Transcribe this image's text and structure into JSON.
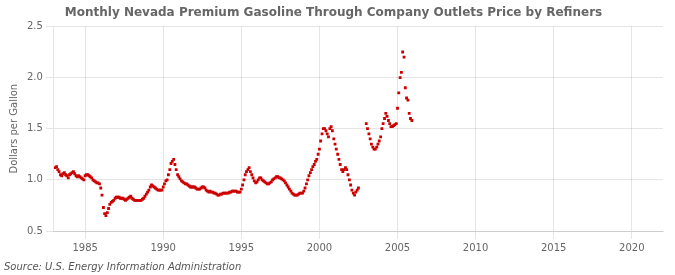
{
  "chart_data": {
    "type": "scatter",
    "title": "Monthly Nevada Premium Gasoline Through Company Outlets Price by Refiners",
    "ylabel": "Dollars per Gallon",
    "annotations": [
      "Source: U.S. Energy Information Administration"
    ],
    "color": "#cc0000",
    "marker": "square",
    "grid": true,
    "xlim": [
      1983.0,
      2022.0
    ],
    "ylim": [
      0.5,
      2.5
    ],
    "xticks": [
      1985,
      1990,
      1995,
      2000,
      2005,
      2010,
      2015,
      2020
    ],
    "yticks": [
      0.5,
      {
        "value": 1.0,
        "label": "1.0"
      },
      1.5,
      {
        "value": 2.0,
        "label": "2.0"
      },
      2.5
    ],
    "x": [
      1983.08,
      1983.17,
      1983.25,
      1983.33,
      1983.42,
      1983.5,
      1983.58,
      1983.67,
      1983.75,
      1983.83,
      1983.92,
      1984.0,
      1984.08,
      1984.17,
      1984.25,
      1984.33,
      1984.42,
      1984.5,
      1984.58,
      1984.67,
      1984.75,
      1984.83,
      1984.92,
      1985.0,
      1985.08,
      1985.17,
      1985.25,
      1985.33,
      1985.42,
      1985.5,
      1985.58,
      1985.67,
      1985.75,
      1985.83,
      1985.92,
      1986.0,
      1986.08,
      1986.17,
      1986.25,
      1986.33,
      1986.42,
      1986.5,
      1986.58,
      1986.67,
      1986.75,
      1986.83,
      1986.92,
      1987.0,
      1987.08,
      1987.17,
      1987.25,
      1987.33,
      1987.42,
      1987.5,
      1987.58,
      1987.67,
      1987.75,
      1987.83,
      1987.92,
      1988.0,
      1988.08,
      1988.17,
      1988.25,
      1988.33,
      1988.42,
      1988.5,
      1988.58,
      1988.67,
      1988.75,
      1988.83,
      1988.92,
      1989.0,
      1989.08,
      1989.17,
      1989.25,
      1989.33,
      1989.42,
      1989.5,
      1989.58,
      1989.67,
      1989.75,
      1989.83,
      1989.92,
      1990.0,
      1990.08,
      1990.17,
      1990.25,
      1990.33,
      1990.42,
      1990.5,
      1990.58,
      1990.67,
      1990.75,
      1990.83,
      1990.92,
      1991.0,
      1991.08,
      1991.17,
      1991.25,
      1991.33,
      1991.42,
      1991.5,
      1991.58,
      1991.67,
      1991.75,
      1991.83,
      1991.92,
      1992.0,
      1992.08,
      1992.17,
      1992.25,
      1992.33,
      1992.42,
      1992.5,
      1992.58,
      1992.67,
      1992.75,
      1992.83,
      1992.92,
      1993.0,
      1993.08,
      1993.17,
      1993.25,
      1993.33,
      1993.42,
      1993.5,
      1993.58,
      1993.67,
      1993.75,
      1993.83,
      1993.92,
      1994.0,
      1994.08,
      1994.17,
      1994.25,
      1994.33,
      1994.42,
      1994.5,
      1994.58,
      1994.67,
      1994.75,
      1994.83,
      1994.92,
      1995.0,
      1995.08,
      1995.17,
      1995.25,
      1995.33,
      1995.42,
      1995.5,
      1995.58,
      1995.67,
      1995.75,
      1995.83,
      1995.92,
      1996.0,
      1996.08,
      1996.17,
      1996.25,
      1996.33,
      1996.42,
      1996.5,
      1996.58,
      1996.67,
      1996.75,
      1996.83,
      1996.92,
      1997.0,
      1997.08,
      1997.17,
      1997.25,
      1997.33,
      1997.42,
      1997.5,
      1997.58,
      1997.67,
      1997.75,
      1997.83,
      1997.92,
      1998.0,
      1998.08,
      1998.17,
      1998.25,
      1998.33,
      1998.42,
      1998.5,
      1998.58,
      1998.67,
      1998.75,
      1998.83,
      1998.92,
      1999.0,
      1999.08,
      1999.17,
      1999.25,
      1999.33,
      1999.42,
      1999.5,
      1999.58,
      1999.67,
      1999.75,
      1999.83,
      1999.92,
      2000.0,
      2000.08,
      2000.17,
      2000.25,
      2000.33,
      2000.42,
      2000.5,
      2000.58,
      2000.67,
      2000.75,
      2000.83,
      2000.92,
      2001.0,
      2001.08,
      2001.17,
      2001.25,
      2001.33,
      2001.42,
      2001.5,
      2001.58,
      2001.67,
      2001.75,
      2001.83,
      2001.92,
      2002.0,
      2002.08,
      2002.17,
      2002.25,
      2002.33,
      2002.42,
      2002.5,
      2003.0,
      2003.08,
      2003.17,
      2003.25,
      2003.33,
      2003.42,
      2003.5,
      2003.58,
      2003.67,
      2003.75,
      2003.83,
      2003.92,
      2004.0,
      2004.08,
      2004.17,
      2004.25,
      2004.33,
      2004.42,
      2004.5,
      2004.58,
      2004.67,
      2004.75,
      2004.83,
      2004.92,
      2005.0,
      2005.08,
      2005.17,
      2005.25,
      2005.33,
      2005.42,
      2005.5,
      2005.58,
      2005.67,
      2005.75,
      2005.83,
      2005.92
    ],
    "values": [
      1.12,
      1.13,
      1.1,
      1.08,
      1.05,
      1.04,
      1.06,
      1.07,
      1.05,
      1.04,
      1.02,
      1.05,
      1.06,
      1.07,
      1.08,
      1.06,
      1.04,
      1.03,
      1.04,
      1.03,
      1.02,
      1.01,
      1.0,
      1.04,
      1.05,
      1.05,
      1.04,
      1.03,
      1.02,
      1.0,
      0.99,
      0.98,
      0.97,
      0.97,
      0.96,
      0.92,
      0.85,
      0.73,
      0.67,
      0.65,
      0.68,
      0.72,
      0.76,
      0.78,
      0.79,
      0.8,
      0.82,
      0.83,
      0.83,
      0.83,
      0.82,
      0.82,
      0.82,
      0.81,
      0.8,
      0.81,
      0.82,
      0.83,
      0.84,
      0.82,
      0.81,
      0.8,
      0.8,
      0.8,
      0.8,
      0.8,
      0.8,
      0.81,
      0.82,
      0.84,
      0.86,
      0.88,
      0.9,
      0.93,
      0.95,
      0.94,
      0.93,
      0.92,
      0.91,
      0.9,
      0.9,
      0.9,
      0.9,
      0.93,
      0.96,
      0.99,
      1.0,
      1.05,
      1.1,
      1.16,
      1.18,
      1.2,
      1.15,
      1.1,
      1.05,
      1.03,
      1.01,
      0.99,
      0.98,
      0.97,
      0.96,
      0.96,
      0.95,
      0.94,
      0.93,
      0.93,
      0.93,
      0.93,
      0.92,
      0.91,
      0.91,
      0.91,
      0.92,
      0.93,
      0.93,
      0.92,
      0.9,
      0.89,
      0.88,
      0.89,
      0.88,
      0.88,
      0.87,
      0.87,
      0.86,
      0.85,
      0.85,
      0.86,
      0.86,
      0.87,
      0.87,
      0.87,
      0.87,
      0.87,
      0.88,
      0.88,
      0.89,
      0.89,
      0.89,
      0.89,
      0.88,
      0.88,
      0.88,
      0.91,
      0.95,
      1.0,
      1.05,
      1.08,
      1.1,
      1.12,
      1.08,
      1.05,
      1.02,
      0.99,
      0.97,
      0.98,
      1.0,
      1.02,
      1.02,
      1.0,
      0.99,
      0.98,
      0.97,
      0.96,
      0.96,
      0.97,
      0.98,
      1.0,
      1.01,
      1.02,
      1.03,
      1.03,
      1.02,
      1.02,
      1.01,
      1.0,
      0.99,
      0.97,
      0.95,
      0.93,
      0.91,
      0.89,
      0.87,
      0.86,
      0.85,
      0.85,
      0.85,
      0.86,
      0.87,
      0.87,
      0.87,
      0.89,
      0.92,
      0.96,
      1.0,
      1.04,
      1.07,
      1.1,
      1.13,
      1.15,
      1.18,
      1.2,
      1.25,
      1.3,
      1.38,
      1.45,
      1.5,
      1.5,
      1.48,
      1.45,
      1.42,
      1.5,
      1.52,
      1.48,
      1.4,
      1.35,
      1.3,
      1.25,
      1.2,
      1.15,
      1.1,
      1.08,
      1.1,
      1.12,
      1.1,
      1.05,
      1.0,
      0.95,
      0.9,
      0.87,
      0.85,
      0.88,
      0.9,
      0.92,
      1.55,
      1.5,
      1.45,
      1.4,
      1.35,
      1.32,
      1.3,
      1.3,
      1.32,
      1.35,
      1.38,
      1.42,
      1.5,
      1.55,
      1.6,
      1.65,
      1.62,
      1.58,
      1.55,
      1.52,
      1.52,
      1.53,
      1.54,
      1.55,
      1.7,
      1.85,
      2.0,
      2.05,
      2.25,
      2.2,
      1.9,
      1.8,
      1.78,
      1.65,
      1.6,
      1.58
    ]
  }
}
